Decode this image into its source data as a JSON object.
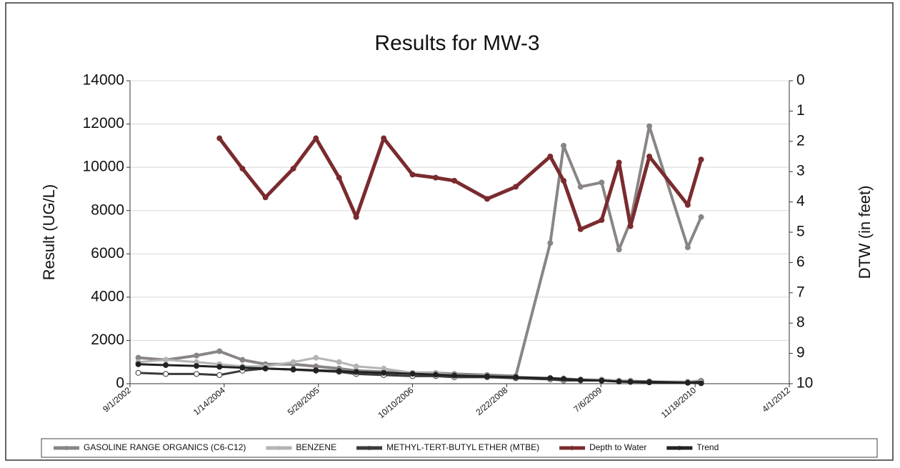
{
  "chart_data": {
    "type": "line",
    "title": "Results for MW-3",
    "y_label": "Result (UG/L)",
    "y2_label": "DTW (in feet)",
    "x": [
      "10/15/2002",
      "3/10/2003",
      "8/20/2003",
      "12/20/2003",
      "4/20/2004",
      "8/20/2004",
      "1/15/2005",
      "5/15/2005",
      "9/15/2005",
      "12/15/2005",
      "5/10/2006",
      "10/10/2006",
      "2/10/2007",
      "5/20/2007",
      "11/10/2007",
      "4/10/2008",
      "10/10/2008",
      "12/20/2008",
      "3/20/2009",
      "7/10/2009",
      "10/10/2009",
      "12/10/2009",
      "3/20/2010",
      "10/10/2010",
      "12/20/2010"
    ],
    "xlim": [
      "9/1/2002",
      "4/1/2012"
    ],
    "xticks": [
      "9/1/2002",
      "1/14/2004",
      "5/28/2005",
      "10/10/2006",
      "2/22/2008",
      "7/6/2009",
      "11/18/2010",
      "4/1/2012"
    ],
    "ylim": [
      0,
      14000
    ],
    "yticks": [
      0,
      2000,
      4000,
      6000,
      8000,
      10000,
      12000,
      14000
    ],
    "y2lim": [
      0,
      10
    ],
    "y2ticks": [
      0,
      1,
      2,
      3,
      4,
      5,
      6,
      7,
      8,
      9,
      10
    ],
    "y2_inverted": true,
    "grid": true,
    "legend": "bottom",
    "series": [
      {
        "name": "GASOLINE RANGE ORGANICS (C6-C12)",
        "color": "#8a8585",
        "values": [
          1200,
          1100,
          1300,
          1500,
          1100,
          900,
          900,
          800,
          700,
          600,
          550,
          500,
          500,
          450,
          400,
          350,
          6500,
          11000,
          9100,
          9300,
          6200,
          7500,
          11900,
          6300,
          7700
        ]
      },
      {
        "name": "BENZENE",
        "color": "#b4b4b4",
        "values": [
          1000,
          1100,
          1000,
          900,
          800,
          800,
          1000,
          1200,
          1000,
          800,
          700,
          500,
          500,
          400,
          350,
          300,
          250,
          250,
          200,
          200,
          150,
          150,
          100,
          100,
          150
        ]
      },
      {
        "name": "METHYL-TERT-BUTYL ETHER (MTBE)",
        "color": "#3a3a3a",
        "values": [
          500,
          450,
          450,
          400,
          600,
          700,
          650,
          600,
          550,
          450,
          400,
          350,
          350,
          300,
          300,
          250,
          200,
          150,
          150,
          150,
          100,
          100,
          100,
          50,
          100
        ]
      },
      {
        "name": "Depth to Water",
        "color": "#7a2b2e",
        "axis": "y2",
        "values": [
          null,
          null,
          null,
          1.9,
          2.9,
          3.85,
          2.9,
          1.9,
          3.2,
          4.5,
          1.9,
          3.1,
          3.2,
          3.3,
          3.9,
          3.5,
          2.5,
          3.3,
          4.9,
          4.6,
          2.7,
          4.8,
          2.5,
          4.1,
          2.6
        ]
      },
      {
        "name": "Trend",
        "color": "#222222",
        "values": [
          900,
          860,
          820,
          780,
          740,
          700,
          660,
          620,
          580,
          540,
          500,
          460,
          420,
          380,
          340,
          300,
          260,
          220,
          180,
          140,
          100,
          80,
          60,
          40,
          20
        ]
      }
    ]
  }
}
